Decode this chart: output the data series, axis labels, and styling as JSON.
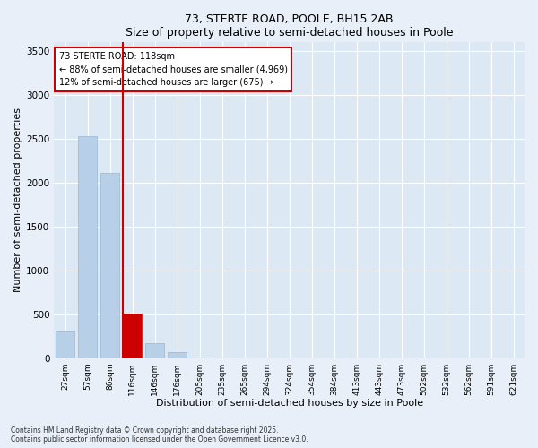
{
  "title": "73, STERTE ROAD, POOLE, BH15 2AB",
  "subtitle": "Size of property relative to semi-detached houses in Poole",
  "xlabel": "Distribution of semi-detached houses by size in Poole",
  "ylabel": "Number of semi-detached properties",
  "categories": [
    "27sqm",
    "57sqm",
    "86sqm",
    "116sqm",
    "146sqm",
    "176sqm",
    "205sqm",
    "235sqm",
    "265sqm",
    "294sqm",
    "324sqm",
    "354sqm",
    "384sqm",
    "413sqm",
    "443sqm",
    "473sqm",
    "502sqm",
    "532sqm",
    "562sqm",
    "591sqm",
    "621sqm"
  ],
  "values": [
    310,
    2530,
    2110,
    510,
    170,
    70,
    10,
    0,
    0,
    0,
    0,
    0,
    0,
    0,
    0,
    0,
    0,
    0,
    0,
    0,
    0
  ],
  "bar_color": "#b8cfe8",
  "highlight_color": "#cc0000",
  "highlight_index": 3,
  "annotation_text": "73 STERTE ROAD: 118sqm\n← 88% of semi-detached houses are smaller (4,969)\n12% of semi-detached houses are larger (675) →",
  "ylim": [
    0,
    3600
  ],
  "yticks": [
    0,
    500,
    1000,
    1500,
    2000,
    2500,
    3000,
    3500
  ],
  "background_color": "#e8eff8",
  "plot_background": "#dce8f4",
  "grid_color": "#ffffff",
  "footer_line1": "Contains HM Land Registry data © Crown copyright and database right 2025.",
  "footer_line2": "Contains public sector information licensed under the Open Government Licence v3.0."
}
